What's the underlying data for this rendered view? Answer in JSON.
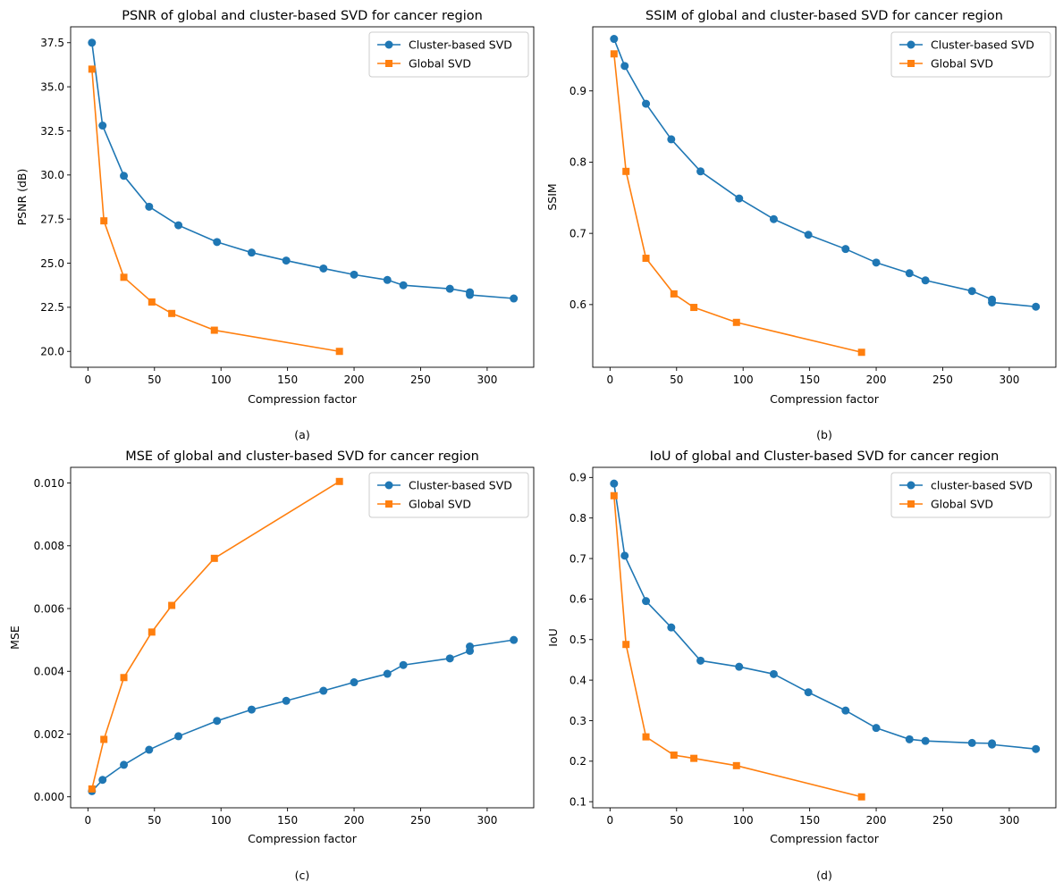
{
  "colors": {
    "series1": "#1f77b4",
    "series2": "#ff7f0e",
    "axis": "#000000",
    "legend_border": "#cccccc"
  },
  "chart_data": [
    {
      "type": "line",
      "title": "PSNR of global and cluster-based SVD for cancer region",
      "xlabel": "Compression factor",
      "ylabel": "PSNR (dB)",
      "caption": "(a)",
      "xlim": [
        -13,
        335
      ],
      "ylim": [
        19.1,
        38.4
      ],
      "xticks": [
        0,
        50,
        100,
        150,
        200,
        250,
        300
      ],
      "xtick_labels": [
        "0",
        "50",
        "100",
        "150",
        "200",
        "250",
        "300"
      ],
      "yticks": [
        20,
        22.5,
        25,
        27.5,
        30,
        32.5,
        35,
        37.5
      ],
      "ytick_labels": [
        "20.0",
        "22.5",
        "25.0",
        "27.5",
        "30.0",
        "32.5",
        "35.0",
        "37.5"
      ],
      "legend_position": "top-right",
      "series": [
        {
          "name": "Cluster-based SVD",
          "marker": "circle",
          "x": [
            3,
            11,
            27,
            46,
            68,
            97,
            123,
            149,
            177,
            200,
            225,
            237,
            272,
            287,
            287,
            320
          ],
          "y": [
            37.5,
            32.8,
            29.95,
            28.2,
            27.15,
            26.2,
            25.6,
            25.15,
            24.7,
            24.35,
            24.05,
            23.75,
            23.55,
            23.35,
            23.2,
            23.0
          ]
        },
        {
          "name": "Global SVD",
          "marker": "square",
          "x": [
            3,
            12,
            27,
            48,
            63,
            95,
            189
          ],
          "y": [
            36.0,
            27.4,
            24.2,
            22.8,
            22.15,
            21.2,
            20.0
          ]
        }
      ]
    },
    {
      "type": "line",
      "title": "SSIM of global and cluster-based SVD for cancer region",
      "xlabel": "Compression factor",
      "ylabel": "SSIM",
      "caption": "(b)",
      "xlim": [
        -13,
        335
      ],
      "ylim": [
        0.512,
        0.99
      ],
      "xticks": [
        0,
        50,
        100,
        150,
        200,
        250,
        300
      ],
      "xtick_labels": [
        "0",
        "50",
        "100",
        "150",
        "200",
        "250",
        "300"
      ],
      "yticks": [
        0.6,
        0.7,
        0.8,
        0.9
      ],
      "ytick_labels": [
        "0.6",
        "0.7",
        "0.8",
        "0.9"
      ],
      "legend_position": "top-right",
      "series": [
        {
          "name": "Cluster-based SVD",
          "marker": "circle",
          "x": [
            3,
            11,
            27,
            46,
            68,
            97,
            123,
            149,
            177,
            200,
            225,
            237,
            272,
            287,
            287,
            320
          ],
          "y": [
            0.973,
            0.935,
            0.882,
            0.832,
            0.787,
            0.749,
            0.72,
            0.698,
            0.678,
            0.659,
            0.644,
            0.634,
            0.619,
            0.607,
            0.603,
            0.597
          ]
        },
        {
          "name": "Global SVD",
          "marker": "square",
          "x": [
            3,
            12,
            27,
            48,
            63,
            95,
            189
          ],
          "y": [
            0.952,
            0.787,
            0.665,
            0.615,
            0.596,
            0.575,
            0.533
          ]
        }
      ]
    },
    {
      "type": "line",
      "title": "MSE of global and cluster-based SVD for cancer region",
      "xlabel": "Compression factor",
      "ylabel": "MSE",
      "caption": "(c)",
      "xlim": [
        -13,
        335
      ],
      "ylim": [
        -0.00035,
        0.0105
      ],
      "xticks": [
        0,
        50,
        100,
        150,
        200,
        250,
        300
      ],
      "xtick_labels": [
        "0",
        "50",
        "100",
        "150",
        "200",
        "250",
        "300"
      ],
      "yticks": [
        0,
        0.002,
        0.004,
        0.006,
        0.008,
        0.01
      ],
      "ytick_labels": [
        "0.000",
        "0.002",
        "0.004",
        "0.006",
        "0.008",
        "0.010"
      ],
      "legend_position": "top-right",
      "series": [
        {
          "name": "Cluster-based SVD",
          "marker": "circle",
          "x": [
            3,
            11,
            27,
            46,
            68,
            97,
            123,
            149,
            177,
            200,
            225,
            237,
            272,
            287,
            287,
            320
          ],
          "y": [
            0.00018,
            0.00054,
            0.00102,
            0.0015,
            0.00193,
            0.00242,
            0.00278,
            0.00306,
            0.00338,
            0.00365,
            0.00392,
            0.0042,
            0.00441,
            0.00465,
            0.00479,
            0.005
          ]
        },
        {
          "name": "Global SVD",
          "marker": "square",
          "x": [
            3,
            12,
            27,
            48,
            63,
            95,
            189
          ],
          "y": [
            0.00025,
            0.00183,
            0.0038,
            0.00525,
            0.0061,
            0.0076,
            0.01005
          ]
        }
      ]
    },
    {
      "type": "line",
      "title": "IoU of global and Cluster-based SVD for cancer region",
      "xlabel": "Compression factor",
      "ylabel": "IoU",
      "caption": "(d)",
      "xlim": [
        -13,
        335
      ],
      "ylim": [
        0.085,
        0.925
      ],
      "xticks": [
        0,
        50,
        100,
        150,
        200,
        250,
        300
      ],
      "xtick_labels": [
        "0",
        "50",
        "100",
        "150",
        "200",
        "250",
        "300"
      ],
      "yticks": [
        0.1,
        0.2,
        0.3,
        0.4,
        0.5,
        0.6,
        0.7,
        0.8,
        0.9
      ],
      "ytick_labels": [
        "0.1",
        "0.2",
        "0.3",
        "0.4",
        "0.5",
        "0.6",
        "0.7",
        "0.8",
        "0.9"
      ],
      "legend_position": "top-right",
      "series": [
        {
          "name": "cluster-based SVD",
          "marker": "circle",
          "x": [
            3,
            11,
            27,
            46,
            68,
            97,
            123,
            149,
            177,
            200,
            225,
            237,
            272,
            287,
            287,
            320
          ],
          "y": [
            0.885,
            0.707,
            0.595,
            0.53,
            0.448,
            0.433,
            0.415,
            0.37,
            0.325,
            0.282,
            0.254,
            0.25,
            0.245,
            0.244,
            0.241,
            0.23
          ]
        },
        {
          "name": "Global SVD",
          "marker": "square",
          "x": [
            3,
            12,
            27,
            48,
            63,
            95,
            189
          ],
          "y": [
            0.855,
            0.488,
            0.26,
            0.215,
            0.207,
            0.189,
            0.112
          ]
        }
      ]
    }
  ]
}
